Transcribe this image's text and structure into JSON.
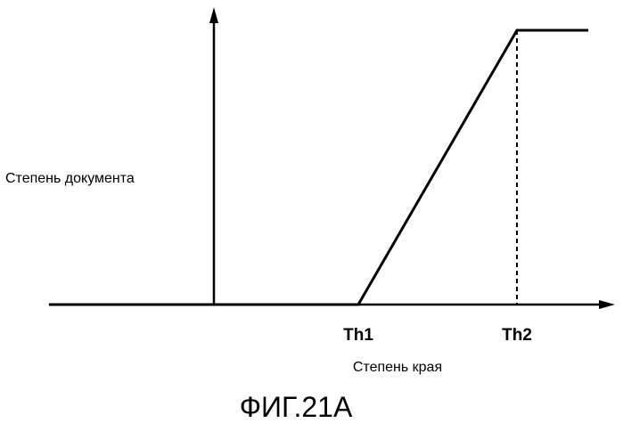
{
  "figure_caption": "ФИГ.21А",
  "chart_data": {
    "type": "line",
    "xlabel": "Степень края",
    "ylabel": "Степень документа",
    "x_ticks": [
      {
        "label": "Th1",
        "x": 1
      },
      {
        "label": "Th2",
        "x": 2
      }
    ],
    "xlim": [
      -0.95,
      2.45
    ],
    "ylim": [
      0,
      1.05
    ],
    "series": [
      {
        "points": [
          {
            "x": -0.95,
            "y": 0
          },
          {
            "x": 1,
            "y": 0
          },
          {
            "x": 2,
            "y": 1
          },
          {
            "x": 2.45,
            "y": 1
          }
        ]
      }
    ],
    "reference_lines": [
      {
        "x": 2,
        "style": "dashed"
      }
    ],
    "grid": false,
    "legend": "none"
  }
}
